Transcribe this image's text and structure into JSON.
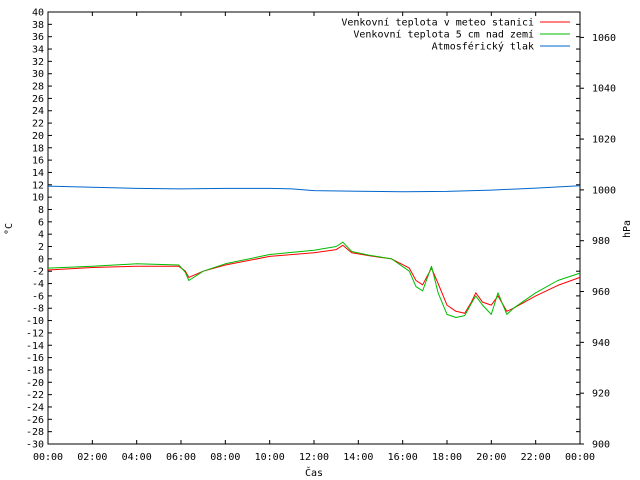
{
  "chart_data": {
    "type": "line",
    "xlabel": "Čas",
    "ylabel_left": "°C",
    "ylabel_right": "hPa",
    "x_ticks": [
      "00:00",
      "02:00",
      "04:00",
      "06:00",
      "08:00",
      "10:00",
      "12:00",
      "14:00",
      "16:00",
      "18:00",
      "20:00",
      "22:00",
      "00:00"
    ],
    "x_range_hours": [
      0,
      24
    ],
    "ylim_left": [
      -30,
      40
    ],
    "ytick_step_left": 2,
    "ylim_right": [
      900,
      1070
    ],
    "right_ticks": [
      900,
      920,
      940,
      960,
      980,
      1000,
      1020,
      1040,
      1060
    ],
    "grid": false,
    "legend_position": "top-right",
    "series": [
      {
        "name": "Venkovní teplota v meteo stanici",
        "color": "#ff0000",
        "axis": "left",
        "points": [
          [
            0,
            -1.8
          ],
          [
            2,
            -1.4
          ],
          [
            4,
            -1.2
          ],
          [
            5.9,
            -1.2
          ],
          [
            6.2,
            -2.0
          ],
          [
            6.35,
            -3.0
          ],
          [
            7,
            -2.0
          ],
          [
            8,
            -1.0
          ],
          [
            10,
            0.4
          ],
          [
            12,
            1.0
          ],
          [
            13,
            1.5
          ],
          [
            13.3,
            2.2
          ],
          [
            13.7,
            1.0
          ],
          [
            14.5,
            0.5
          ],
          [
            15.5,
            0.0
          ],
          [
            16.3,
            -1.5
          ],
          [
            16.6,
            -3.5
          ],
          [
            16.9,
            -4.2
          ],
          [
            17.3,
            -1.5
          ],
          [
            17.6,
            -4.0
          ],
          [
            18,
            -7.5
          ],
          [
            18.4,
            -8.5
          ],
          [
            18.8,
            -8.8
          ],
          [
            19.1,
            -7.0
          ],
          [
            19.3,
            -5.5
          ],
          [
            19.6,
            -7.0
          ],
          [
            20,
            -7.5
          ],
          [
            20.3,
            -6.0
          ],
          [
            20.7,
            -8.5
          ],
          [
            21,
            -8.0
          ],
          [
            22,
            -6.0
          ],
          [
            23,
            -4.3
          ],
          [
            24,
            -3.0
          ]
        ]
      },
      {
        "name": "Venkovní teplota 5 cm nad zemí",
        "color": "#00bb00",
        "axis": "left",
        "points": [
          [
            0,
            -1.5
          ],
          [
            2,
            -1.2
          ],
          [
            4,
            -0.8
          ],
          [
            5.9,
            -1.0
          ],
          [
            6.2,
            -2.2
          ],
          [
            6.35,
            -3.5
          ],
          [
            7,
            -2.0
          ],
          [
            8,
            -0.8
          ],
          [
            10,
            0.7
          ],
          [
            12,
            1.4
          ],
          [
            13,
            2.0
          ],
          [
            13.3,
            2.7
          ],
          [
            13.7,
            1.2
          ],
          [
            14.5,
            0.6
          ],
          [
            15.5,
            0.0
          ],
          [
            16.3,
            -2.0
          ],
          [
            16.6,
            -4.5
          ],
          [
            16.9,
            -5.2
          ],
          [
            17.3,
            -1.2
          ],
          [
            17.6,
            -5.5
          ],
          [
            18,
            -9.0
          ],
          [
            18.4,
            -9.5
          ],
          [
            18.8,
            -9.2
          ],
          [
            19.1,
            -7.2
          ],
          [
            19.3,
            -6.0
          ],
          [
            19.6,
            -7.5
          ],
          [
            20,
            -9.0
          ],
          [
            20.3,
            -5.5
          ],
          [
            20.7,
            -9.0
          ],
          [
            21,
            -8.0
          ],
          [
            22,
            -5.5
          ],
          [
            23,
            -3.5
          ],
          [
            24,
            -2.3
          ]
        ]
      },
      {
        "name": "Atmosférický tlak",
        "color": "#0066cc",
        "axis": "right",
        "points": [
          [
            0,
            1001.5
          ],
          [
            2,
            1001.0
          ],
          [
            4,
            1000.6
          ],
          [
            6,
            1000.4
          ],
          [
            8,
            1000.6
          ],
          [
            10,
            1000.6
          ],
          [
            11,
            1000.4
          ],
          [
            12,
            999.7
          ],
          [
            14,
            999.5
          ],
          [
            16,
            999.3
          ],
          [
            18,
            999.4
          ],
          [
            20,
            999.9
          ],
          [
            22,
            1000.7
          ],
          [
            24,
            1001.6
          ]
        ]
      }
    ]
  }
}
